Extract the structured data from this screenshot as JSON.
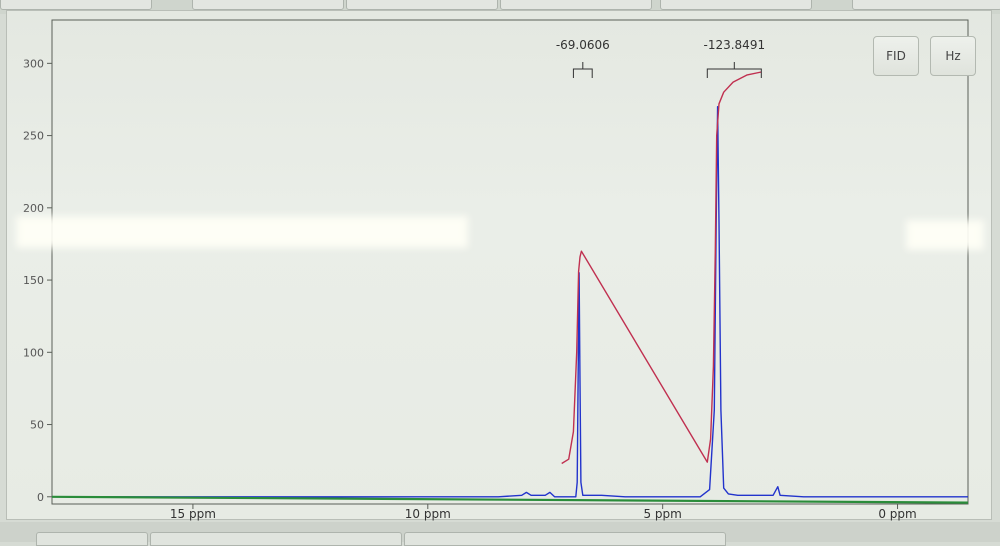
{
  "toolbar": {
    "fid_label": "FID",
    "hz_label": "Hz"
  },
  "chart_data": {
    "type": "line",
    "xlabel": "",
    "ylabel": "",
    "xlim": [
      18,
      -1.5
    ],
    "ylim": [
      -5,
      330
    ],
    "x_tick_labels": [
      {
        "value": 15,
        "label": "15 ppm"
      },
      {
        "value": 10,
        "label": "10 ppm"
      },
      {
        "value": 5,
        "label": "5 ppm"
      },
      {
        "value": 0,
        "label": "0 ppm"
      }
    ],
    "y_ticks": [
      0,
      50,
      100,
      150,
      200,
      250,
      300
    ],
    "grid": false,
    "series": [
      {
        "color": "#2233cc",
        "points": [
          [
            18.0,
            0
          ],
          [
            14.0,
            0
          ],
          [
            10.0,
            0
          ],
          [
            8.5,
            0
          ],
          [
            8.0,
            1
          ],
          [
            7.9,
            3
          ],
          [
            7.8,
            1
          ],
          [
            7.5,
            1
          ],
          [
            7.4,
            3
          ],
          [
            7.3,
            0
          ],
          [
            6.85,
            0
          ],
          [
            6.82,
            10
          ],
          [
            6.8,
            80
          ],
          [
            6.78,
            155
          ],
          [
            6.76,
            80
          ],
          [
            6.74,
            10
          ],
          [
            6.7,
            1
          ],
          [
            6.3,
            1
          ],
          [
            5.8,
            0
          ],
          [
            4.2,
            0
          ],
          [
            4.0,
            5
          ],
          [
            3.9,
            60
          ],
          [
            3.86,
            190
          ],
          [
            3.83,
            270
          ],
          [
            3.8,
            190
          ],
          [
            3.76,
            60
          ],
          [
            3.7,
            6
          ],
          [
            3.6,
            2
          ],
          [
            3.4,
            1
          ],
          [
            3.0,
            1
          ],
          [
            2.65,
            1
          ],
          [
            2.55,
            7
          ],
          [
            2.5,
            1
          ],
          [
            2.0,
            0
          ],
          [
            0.0,
            0
          ],
          [
            -1.5,
            0
          ]
        ]
      },
      {
        "color": "#c03050",
        "points": [
          [
            7.15,
            23
          ],
          [
            7.0,
            26
          ],
          [
            6.9,
            45
          ],
          [
            6.83,
            100
          ],
          [
            6.79,
            156
          ],
          [
            6.76,
            166
          ],
          [
            6.73,
            170
          ],
          [
            4.05,
            24
          ],
          [
            3.98,
            40
          ],
          [
            3.92,
            90
          ],
          [
            3.88,
            170
          ],
          [
            3.85,
            250
          ],
          [
            3.8,
            272
          ],
          [
            3.7,
            280
          ],
          [
            3.5,
            287
          ],
          [
            3.2,
            292
          ],
          [
            2.9,
            294
          ]
        ]
      },
      {
        "color": "#2a8c3a",
        "points": [
          [
            18.0,
            0
          ],
          [
            -1.5,
            -4
          ]
        ]
      }
    ],
    "integrals": [
      {
        "label": "-69.0606",
        "from": 6.9,
        "to": 6.5
      },
      {
        "label": "-123.8491",
        "from": 4.05,
        "to": 2.9
      }
    ]
  }
}
